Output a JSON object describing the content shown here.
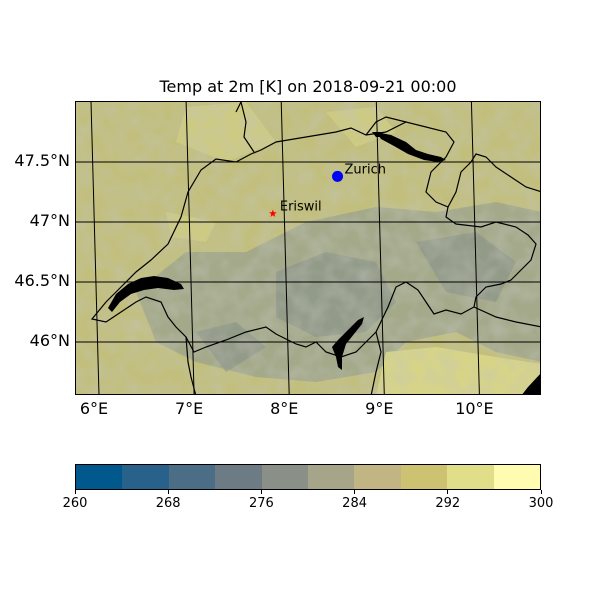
{
  "title": "Temp at 2m [K] on 2018-09-21 00:00",
  "map": {
    "lon_range": [
      5.8,
      10.7
    ],
    "lat_range": [
      45.55,
      48.0
    ],
    "lat_ticks": [
      {
        "value": 47.5,
        "label": "47.5°N"
      },
      {
        "value": 47.0,
        "label": "47°N"
      },
      {
        "value": 46.5,
        "label": "46.5°N"
      },
      {
        "value": 46.0,
        "label": "46°N"
      }
    ],
    "lon_ticks": [
      {
        "value": 6.0,
        "label": "6°E"
      },
      {
        "value": 7.0,
        "label": "7°E"
      },
      {
        "value": 8.0,
        "label": "8°E"
      },
      {
        "value": 9.0,
        "label": "9°E"
      },
      {
        "value": 10.0,
        "label": "10°E"
      }
    ],
    "locations": [
      {
        "name": "Zurich",
        "lon": 8.55,
        "lat": 47.38,
        "marker": "circle",
        "color": "#0000ff"
      },
      {
        "name": "Eriswil",
        "lon": 7.87,
        "lat": 47.07,
        "marker": "star",
        "color": "#ff0000"
      }
    ]
  },
  "colorbar": {
    "min": 260,
    "max": 300,
    "ticks": [
      260,
      268,
      276,
      284,
      292,
      300
    ],
    "tick_labels": [
      "260",
      "268",
      "276",
      "284",
      "292",
      "300"
    ],
    "colors": [
      "#00588c",
      "#28628b",
      "#4b6d85",
      "#6d7c84",
      "#8a9087",
      "#a7a589",
      "#c0b583",
      "#cdc272",
      "#e1de8a",
      "#fffbb0"
    ]
  }
}
